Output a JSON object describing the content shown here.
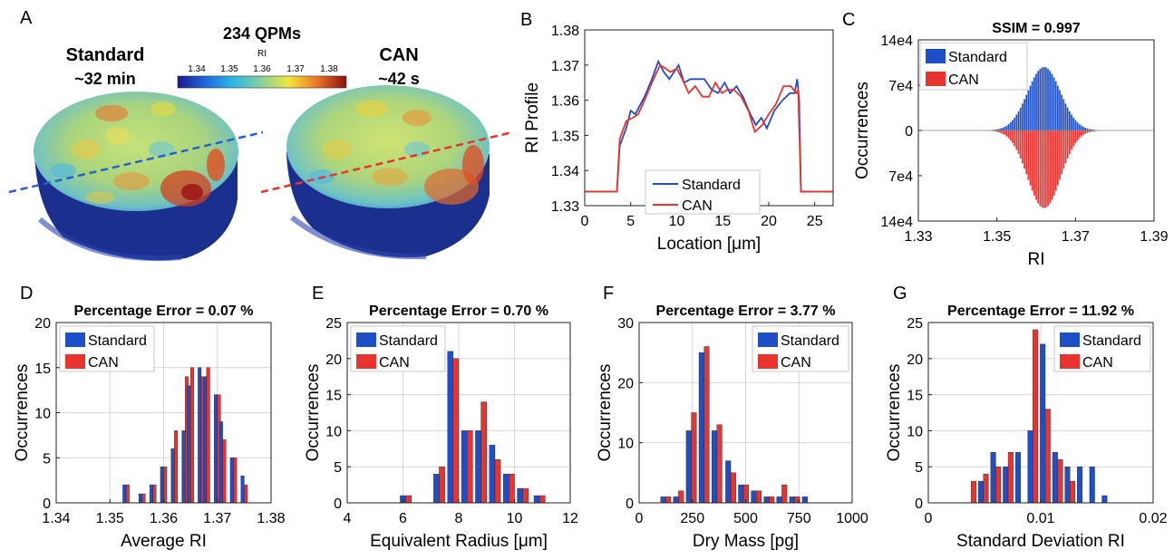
{
  "panel_a": {
    "letter": "A",
    "title": "234 QPMs",
    "colorbar_label": "RI",
    "colorbar_ticks": [
      "1.34",
      "1.35",
      "1.36",
      "1.37",
      "1.38"
    ],
    "left_label": "Standard",
    "left_time": "~32 min",
    "right_label": "CAN",
    "right_time": "~42 s",
    "colors": {
      "standard": "#1f4fc8",
      "can": "#e8332e"
    }
  },
  "chart_data": [
    {
      "id": "B",
      "letter": "B",
      "type": "line",
      "title": "",
      "xlabel": "Location [μm]",
      "ylabel": "RI Profile",
      "xlim": [
        0,
        27
      ],
      "ylim": [
        1.33,
        1.38
      ],
      "xticks": [
        0,
        5,
        10,
        15,
        20,
        25
      ],
      "yticks": [
        1.33,
        1.34,
        1.35,
        1.36,
        1.37,
        1.38
      ],
      "ytick_labels": [
        "1.33",
        "1.34",
        "1.35",
        "1.36",
        "1.37",
        "1.38"
      ],
      "legend": "bottom-center",
      "grid": false,
      "series": [
        {
          "name": "Standard",
          "color": "#1f4fc8",
          "x": [
            0,
            3.5,
            3.8,
            4.5,
            5,
            5.5,
            6.5,
            7.3,
            8,
            8.6,
            9.2,
            9.7,
            10.2,
            10.8,
            11.5,
            12.3,
            13,
            13.8,
            14.5,
            15.2,
            15.8,
            16.5,
            17.2,
            18,
            18.6,
            19.2,
            19.8,
            20.6,
            21.5,
            22.3,
            22.8,
            23.1,
            23.3,
            23.5,
            27
          ],
          "y": [
            1.334,
            1.334,
            1.347,
            1.352,
            1.357,
            1.356,
            1.361,
            1.366,
            1.371,
            1.368,
            1.366,
            1.368,
            1.37,
            1.365,
            1.366,
            1.366,
            1.366,
            1.363,
            1.362,
            1.365,
            1.362,
            1.364,
            1.361,
            1.356,
            1.353,
            1.355,
            1.352,
            1.357,
            1.36,
            1.362,
            1.362,
            1.366,
            1.36,
            1.334,
            1.334
          ]
        },
        {
          "name": "CAN",
          "color": "#e8332e",
          "x": [
            0,
            3.5,
            3.8,
            4.5,
            5.2,
            5.8,
            6.5,
            7.3,
            8.2,
            8.8,
            9.3,
            10,
            10.6,
            11.3,
            12,
            12.8,
            13.5,
            14.2,
            14.9,
            15.5,
            16.2,
            17,
            17.8,
            18.5,
            19.3,
            20,
            20.8,
            21.6,
            22.4,
            23,
            23.2,
            23.5,
            27
          ],
          "y": [
            1.334,
            1.334,
            1.349,
            1.354,
            1.355,
            1.356,
            1.36,
            1.365,
            1.37,
            1.369,
            1.368,
            1.369,
            1.366,
            1.362,
            1.364,
            1.361,
            1.361,
            1.365,
            1.362,
            1.363,
            1.363,
            1.361,
            1.357,
            1.351,
            1.353,
            1.356,
            1.359,
            1.364,
            1.364,
            1.362,
            1.363,
            1.334,
            1.334
          ]
        }
      ]
    },
    {
      "id": "C",
      "letter": "C",
      "type": "bar",
      "title": "SSIM = 0.997",
      "xlabel": "RI",
      "ylabel": "Occurrences",
      "xlim": [
        1.33,
        1.39
      ],
      "ylim": [
        -140000,
        140000
      ],
      "xticks": [
        1.33,
        1.35,
        1.37,
        1.39
      ],
      "xtick_labels": [
        "1.33",
        "1.35",
        "1.37",
        "1.39"
      ],
      "yticks": [
        140000,
        70000,
        0,
        -70000,
        -140000
      ],
      "ytick_labels": [
        "14e4",
        "7e4",
        "0",
        "7e4",
        "14e4"
      ],
      "legend": "top-left",
      "grid": false,
      "bin_center": 1.362,
      "bin_sigma": 0.0042,
      "bin_step": 0.0005,
      "bin_range": [
        1.338,
        1.384
      ],
      "series": [
        {
          "name": "Standard",
          "color": "#1f4fc8",
          "peak": 98000,
          "direction": "up"
        },
        {
          "name": "CAN",
          "color": "#e8332e",
          "peak": 120000,
          "direction": "down"
        }
      ]
    },
    {
      "id": "D",
      "letter": "D",
      "type": "bar",
      "title": "Percentage Error = 0.07 %",
      "xlabel": "Average RI",
      "ylabel": "Occurrences",
      "xlim": [
        1.34,
        1.38
      ],
      "ylim": [
        0,
        20
      ],
      "xticks": [
        1.34,
        1.35,
        1.36,
        1.37,
        1.38
      ],
      "xtick_labels": [
        "1.34",
        "1.35",
        "1.36",
        "1.37",
        "1.38"
      ],
      "yticks": [
        0,
        5,
        10,
        15,
        20
      ],
      "grid": true,
      "legend": "top-left",
      "categories": [
        1.353,
        1.356,
        1.358,
        1.36,
        1.362,
        1.364,
        1.365,
        1.367,
        1.368,
        1.37,
        1.371,
        1.373,
        1.375
      ],
      "bar_width": 0.0006,
      "series": [
        {
          "name": "Standard",
          "color": "#1f4fc8",
          "values": [
            2,
            1,
            2,
            4,
            6,
            8,
            13,
            15,
            14,
            12,
            9,
            5,
            3
          ]
        },
        {
          "name": "CAN",
          "color": "#e8332e",
          "values": [
            2,
            1,
            2,
            4,
            8,
            14,
            15,
            14,
            15,
            12,
            7,
            5,
            2
          ]
        }
      ]
    },
    {
      "id": "E",
      "letter": "E",
      "type": "bar",
      "title": "Percentage Error = 0.70 %",
      "xlabel": "Equivalent Radius [μm]",
      "ylabel": "Occurrences",
      "xlim": [
        4,
        12
      ],
      "ylim": [
        0,
        25
      ],
      "xticks": [
        4,
        6,
        8,
        10,
        12
      ],
      "yticks": [
        0,
        5,
        10,
        15,
        20,
        25
      ],
      "grid": true,
      "legend": "top-left",
      "categories": [
        6.1,
        6.6,
        7.3,
        7.8,
        8.3,
        8.8,
        9.3,
        9.8,
        10.3,
        10.9
      ],
      "bar_width": 0.2,
      "series": [
        {
          "name": "Standard",
          "color": "#1f4fc8",
          "values": [
            1,
            0,
            4,
            21,
            10,
            10,
            8,
            4,
            2,
            1
          ]
        },
        {
          "name": "CAN",
          "color": "#e8332e",
          "values": [
            1,
            0,
            5,
            20,
            10,
            14,
            6,
            4,
            2,
            1
          ]
        }
      ]
    },
    {
      "id": "F",
      "letter": "F",
      "type": "bar",
      "title": "Percentage Error = 3.77 %",
      "xlabel": "Dry Mass [pg]",
      "ylabel": "Occurrences",
      "xlim": [
        0,
        1000
      ],
      "ylim": [
        0,
        30
      ],
      "xticks": [
        0,
        250,
        500,
        750,
        1000
      ],
      "yticks": [
        0,
        10,
        20,
        30
      ],
      "grid": true,
      "legend": "top-right",
      "categories": [
        125,
        185,
        245,
        305,
        365,
        430,
        490,
        550,
        610,
        670,
        730,
        790,
        850
      ],
      "bar_width": 24,
      "series": [
        {
          "name": "Standard",
          "color": "#1f4fc8",
          "values": [
            1,
            1,
            12,
            25,
            12,
            7,
            3,
            2,
            1,
            1,
            1,
            1,
            0
          ]
        },
        {
          "name": "CAN",
          "color": "#e8332e",
          "values": [
            1,
            2,
            15,
            26,
            13,
            5,
            3,
            2,
            1,
            3,
            1,
            0,
            0
          ]
        }
      ]
    },
    {
      "id": "G",
      "letter": "G",
      "type": "bar",
      "title": "Percentage Error = 11.92 %",
      "xlabel": "Standard Deviation RI",
      "ylabel": "Occurrences",
      "xlim": [
        0,
        0.02
      ],
      "ylim": [
        0,
        25
      ],
      "xticks": [
        0,
        0.01,
        0.02
      ],
      "xtick_labels": [
        "0",
        "0.01",
        "0.02"
      ],
      "yticks": [
        0,
        5,
        10,
        15,
        20,
        25
      ],
      "grid": true,
      "legend": "top-right",
      "categories": [
        0.0038,
        0.0049,
        0.006,
        0.0071,
        0.0082,
        0.0093,
        0.0104,
        0.0115,
        0.0126,
        0.0137,
        0.0148,
        0.0159
      ],
      "bar_width": 0.00045,
      "series": [
        {
          "name": "Standard",
          "color": "#1f4fc8",
          "values": [
            0,
            3,
            7,
            5,
            7,
            10,
            22,
            7,
            5,
            5,
            5,
            1
          ]
        },
        {
          "name": "CAN",
          "color": "#e8332e",
          "values": [
            3,
            4,
            5,
            7,
            0,
            24,
            13,
            6,
            3,
            0,
            0,
            0
          ]
        }
      ]
    }
  ]
}
